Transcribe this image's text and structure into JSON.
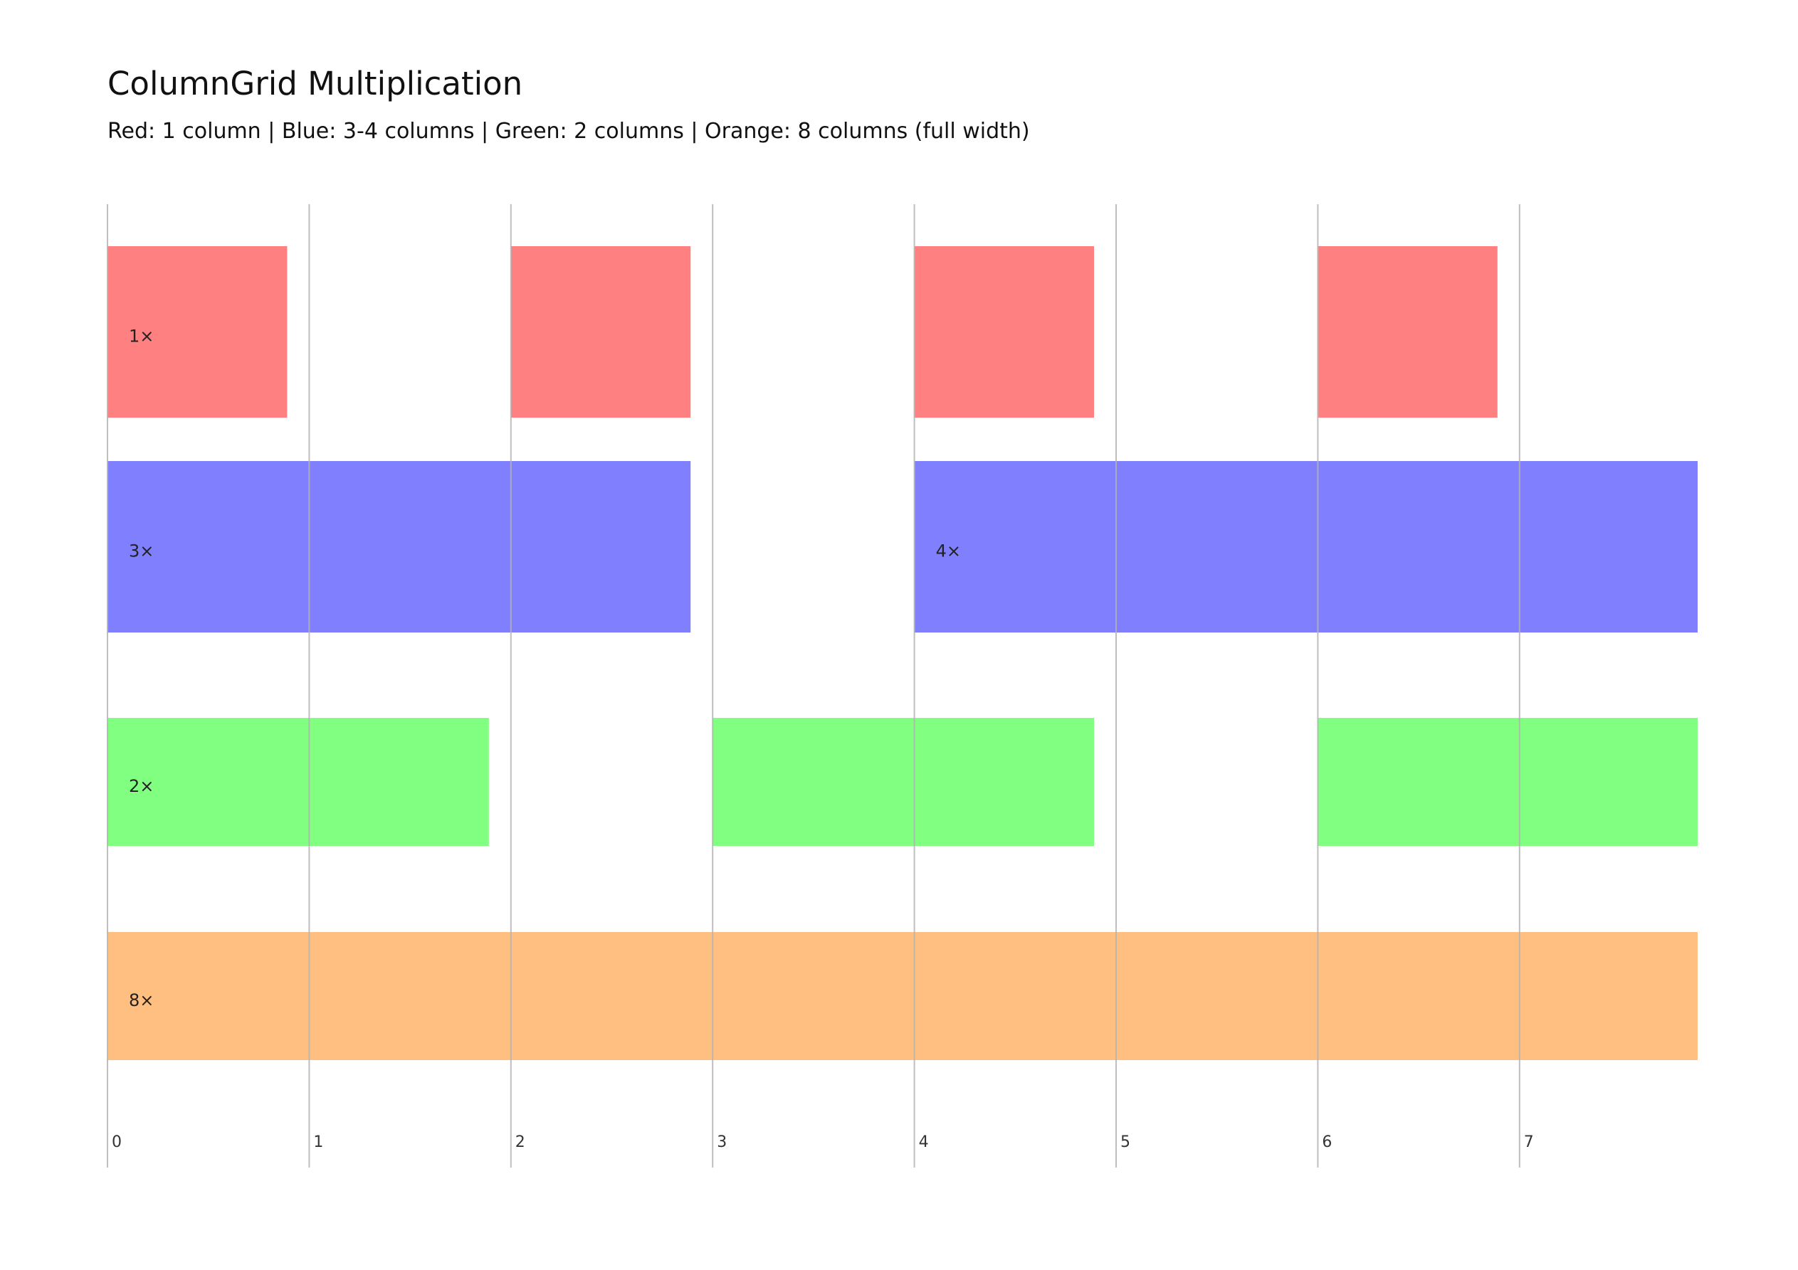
{
  "header": {
    "title": "ColumnGrid Multiplication",
    "subtitle": "Red: 1 column | Blue: 3-4 columns | Green: 2 columns | Orange: 8 columns (full width)"
  },
  "grid": {
    "column_count": 8,
    "column_labels": [
      "0",
      "1",
      "2",
      "3",
      "4",
      "5",
      "6",
      "7"
    ],
    "line_color": "#b3b3b3"
  },
  "rows": [
    {
      "name": "red",
      "color": "#ff8080",
      "blocks": [
        {
          "start": 0,
          "span": 1,
          "label": "1×"
        },
        {
          "start": 2,
          "span": 1,
          "label": ""
        },
        {
          "start": 4,
          "span": 1,
          "label": ""
        },
        {
          "start": 6,
          "span": 1,
          "label": ""
        }
      ]
    },
    {
      "name": "blue",
      "color": "#8080ff",
      "blocks": [
        {
          "start": 0,
          "span": 3,
          "label": "3×"
        },
        {
          "start": 4,
          "span": 4,
          "label": "4×"
        }
      ]
    },
    {
      "name": "green",
      "color": "#80ff80",
      "blocks": [
        {
          "start": 0,
          "span": 2,
          "label": "2×"
        },
        {
          "start": 3,
          "span": 2,
          "label": ""
        },
        {
          "start": 6,
          "span": 2,
          "label": ""
        }
      ]
    },
    {
      "name": "orange",
      "color": "#ffbf80",
      "blocks": [
        {
          "start": 0,
          "span": 8,
          "label": "8×"
        }
      ]
    }
  ]
}
